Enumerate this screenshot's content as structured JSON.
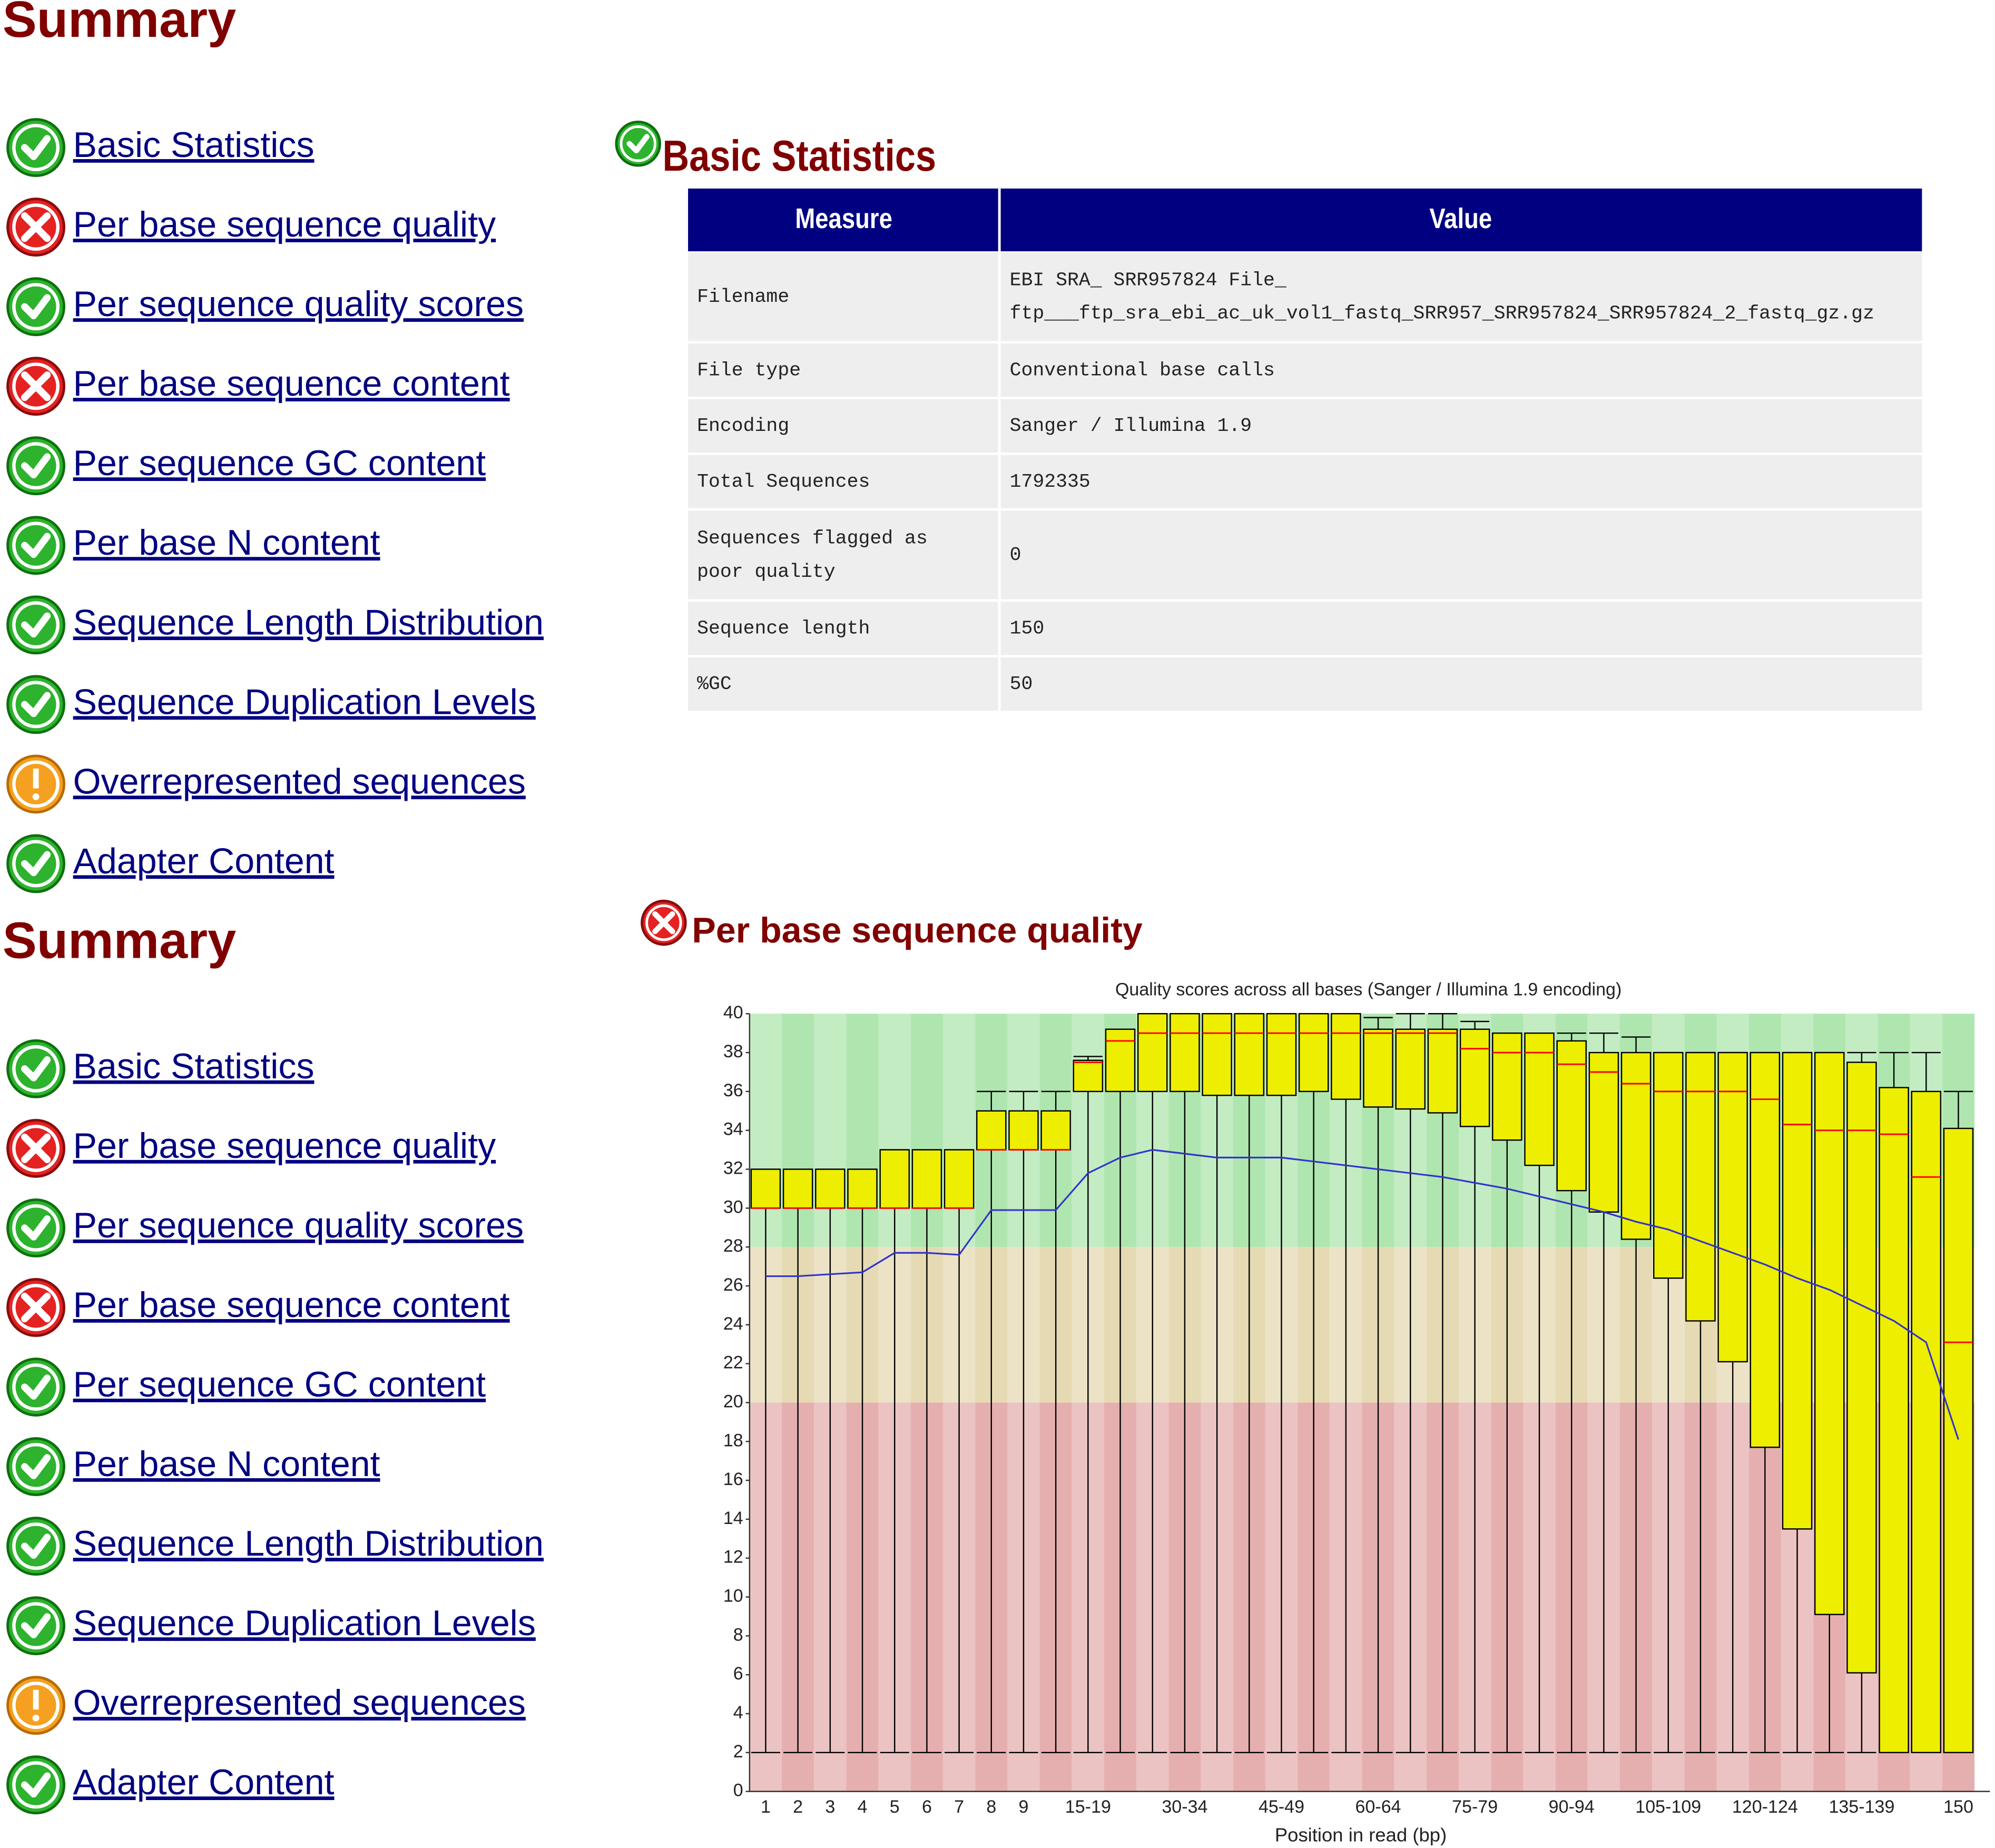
{
  "summary_top": {
    "title": "Summary",
    "items": [
      {
        "label": "Basic Statistics",
        "status": "pass"
      },
      {
        "label": "Per base sequence quality",
        "status": "fail"
      },
      {
        "label": "Per sequence quality scores",
        "status": "pass"
      },
      {
        "label": "Per base sequence content",
        "status": "fail"
      },
      {
        "label": "Per sequence GC content",
        "status": "pass"
      },
      {
        "label": "Per base N content",
        "status": "pass"
      },
      {
        "label": "Sequence Length Distribution",
        "status": "pass"
      },
      {
        "label": "Sequence Duplication Levels",
        "status": "pass"
      },
      {
        "label": "Overrepresented sequences",
        "status": "warn"
      },
      {
        "label": "Adapter Content",
        "status": "pass"
      }
    ]
  },
  "basic_statistics": {
    "title": "Basic Statistics",
    "status": "pass",
    "table": {
      "headers": [
        "Measure",
        "Value"
      ],
      "rows": [
        [
          [
            "Filename"
          ],
          [
            "EBI SRA_ SRR957824 File_",
            "ftp___ftp_sra_ebi_ac_uk_vol1_fastq_SRR957_SRR957824_SRR957824_2_fastq_gz.gz"
          ]
        ],
        [
          [
            "File type"
          ],
          [
            "Conventional base calls"
          ]
        ],
        [
          [
            "Encoding"
          ],
          [
            "Sanger / Illumina 1.9"
          ]
        ],
        [
          [
            "Total Sequences"
          ],
          [
            "1792335"
          ]
        ],
        [
          [
            "Sequences flagged as",
            "poor quality"
          ],
          [
            "0"
          ]
        ],
        [
          [
            "Sequence length"
          ],
          [
            "150"
          ]
        ],
        [
          [
            "%GC"
          ],
          [
            "50"
          ]
        ]
      ]
    }
  },
  "summary_bottom": {
    "title": "Summary",
    "items": [
      {
        "label": "Basic Statistics",
        "status": "pass"
      },
      {
        "label": "Per base sequence quality",
        "status": "fail"
      },
      {
        "label": "Per sequence quality scores",
        "status": "pass"
      },
      {
        "label": "Per base sequence content",
        "status": "fail"
      },
      {
        "label": "Per sequence GC content",
        "status": "pass"
      },
      {
        "label": "Per base N content",
        "status": "pass"
      },
      {
        "label": "Sequence Length Distribution",
        "status": "pass"
      },
      {
        "label": "Sequence Duplication Levels",
        "status": "pass"
      },
      {
        "label": "Overrepresented sequences",
        "status": "warn"
      },
      {
        "label": "Adapter Content",
        "status": "pass"
      }
    ]
  },
  "per_base_quality": {
    "title": "Per base sequence quality",
    "status": "fail"
  },
  "chart_data": {
    "type": "boxplot",
    "title": "Quality scores across all bases (Sanger / Illumina 1.9 encoding)",
    "x_label": "Position in read (bp)",
    "categories": [
      "1",
      "2",
      "3",
      "4",
      "5",
      "6",
      "7",
      "8",
      "9",
      null,
      "15-19",
      null,
      null,
      "30-34",
      null,
      null,
      "45-49",
      null,
      null,
      "60-64",
      null,
      null,
      "75-79",
      null,
      null,
      "90-94",
      null,
      null,
      "105-109",
      null,
      null,
      "120-124",
      null,
      null,
      "135-139",
      null,
      null,
      "150"
    ],
    "q1": [
      30,
      30,
      30,
      30,
      30,
      30,
      30,
      33,
      33,
      33,
      36,
      36,
      36,
      36,
      35.8,
      35.8,
      35.8,
      36,
      35.6,
      35.2,
      35.1,
      34.9,
      34.2,
      33.5,
      32.2,
      30.9,
      29.8,
      28.4,
      26.4,
      24.2,
      22.1,
      17.7,
      13.5,
      9.1,
      6.1,
      2,
      2,
      2
    ],
    "q3": [
      32,
      32,
      32,
      32,
      33,
      33,
      33,
      35,
      35,
      35,
      37.6,
      39.2,
      40,
      40,
      40,
      40,
      40,
      40,
      40,
      39.2,
      39.2,
      39.2,
      39.2,
      39,
      39,
      38.6,
      38,
      38,
      38,
      38,
      38,
      38,
      38,
      38,
      37.5,
      36.2,
      36,
      34.1
    ],
    "median": [
      30,
      30,
      30,
      30,
      30,
      30,
      30,
      33,
      33,
      33,
      37.5,
      38.6,
      39,
      39,
      39,
      39,
      39,
      39,
      39,
      39,
      39,
      39,
      38.2,
      38,
      38,
      37.4,
      37,
      36.4,
      36,
      36,
      36,
      35.6,
      34.3,
      34,
      34,
      33.8,
      31.6,
      23.1
    ],
    "whisker_low": [
      2,
      2,
      2,
      2,
      2,
      2,
      2,
      2,
      2,
      2,
      2,
      2,
      2,
      2,
      2,
      2,
      2,
      2,
      2,
      2,
      2,
      2,
      2,
      2,
      2,
      2,
      2,
      2,
      2,
      2,
      2,
      2,
      2,
      2,
      2,
      2,
      2,
      2
    ],
    "whisker_high": [
      32,
      32,
      32,
      32,
      33,
      33,
      33,
      36,
      36,
      36,
      37.8,
      39.2,
      40,
      40,
      40,
      40,
      40,
      40,
      40,
      39.8,
      40,
      40,
      39.6,
      39,
      39,
      39,
      39,
      38.8,
      38,
      38,
      38,
      38,
      38,
      38,
      38,
      38,
      38,
      36
    ],
    "mean": [
      26.5,
      26.5,
      26.6,
      26.7,
      27.7,
      27.7,
      27.6,
      29.9,
      29.9,
      29.9,
      31.8,
      32.6,
      33.0,
      32.8,
      32.6,
      32.6,
      32.6,
      32.4,
      32.2,
      32.0,
      31.8,
      31.6,
      31.3,
      31.0,
      30.6,
      30.2,
      29.8,
      29.3,
      28.9,
      28.3,
      27.7,
      27.1,
      26.4,
      25.8,
      25.0,
      24.2,
      23.1,
      18.1
    ],
    "box_color": "#eeee00",
    "median_color": "#ff0000",
    "mean_color": "#3333cc",
    "zones": [
      {
        "from": 28,
        "to": 40,
        "color": "#afe6af"
      },
      {
        "from": 20,
        "to": 28,
        "color": "#e6dab4"
      },
      {
        "from": 0,
        "to": 20,
        "color": "#e6afaf"
      }
    ],
    "ylim": [
      0,
      40
    ],
    "yticks": [
      0,
      2,
      4,
      6,
      8,
      10,
      12,
      14,
      16,
      18,
      20,
      22,
      24,
      26,
      28,
      30,
      32,
      34,
      36,
      38,
      40
    ]
  }
}
